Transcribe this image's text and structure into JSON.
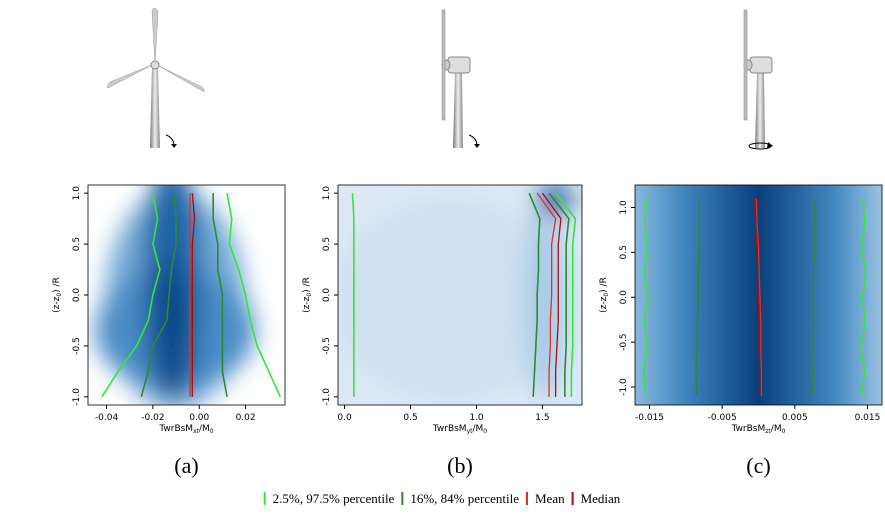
{
  "legend": [
    {
      "name": "2.5%, 97.5% percentile",
      "color": "#33e833"
    },
    {
      "name": "16%, 84% percentile",
      "color": "#2f8a2f"
    },
    {
      "name": "Mean",
      "color": "#e03020"
    },
    {
      "name": "Median",
      "color": "#a01010"
    }
  ],
  "chart_data": [
    {
      "type": "line",
      "caption": "(a)",
      "xlabel": [
        "TwrBsM",
        "xt",
        "/M",
        "0"
      ],
      "ylabel": [
        "(z-z",
        "0",
        ") /R"
      ],
      "xlim": [
        -0.048,
        0.037
      ],
      "xticks": [
        -0.04,
        -0.02,
        {
          "value": 0,
          "label": "0.00"
        },
        0.02
      ],
      "ylim": [
        -1.08,
        1.08
      ],
      "yticks": [
        {
          "value": -1,
          "label": "-1.0"
        },
        -0.5,
        {
          "value": 0,
          "label": "0.0"
        },
        0.5,
        {
          "value": 1,
          "label": "1.0"
        }
      ],
      "y": [
        -1,
        -0.75,
        -0.5,
        -0.25,
        0,
        0.25,
        0.5,
        0.75,
        1
      ],
      "series": [
        {
          "lines": [
            [
              -0.042,
              -0.035,
              -0.027,
              -0.022,
              -0.02,
              -0.017,
              -0.02,
              -0.018,
              -0.02
            ],
            [
              0.035,
              0.03,
              0.025,
              0.022,
              0.02,
              0.017,
              0.013,
              0.014,
              0.012
            ]
          ]
        },
        {
          "lines": [
            [
              -0.025,
              -0.022,
              -0.02,
              -0.014,
              -0.013,
              -0.012,
              -0.01,
              -0.01,
              -0.011
            ],
            [
              0.012,
              0.01,
              0.01,
              0.01,
              0.01,
              0.008,
              0.008,
              0.006,
              0.006
            ]
          ]
        },
        {
          "lines": [
            [
              -0.004,
              -0.004,
              -0.004,
              -0.004,
              -0.004,
              -0.004,
              -0.004,
              -0.004,
              -0.004
            ]
          ]
        },
        {
          "lines": [
            [
              -0.003,
              -0.003,
              -0.003,
              -0.003,
              -0.003,
              -0.003,
              -0.003,
              -0.002,
              -0.003
            ]
          ]
        }
      ]
    },
    {
      "type": "line",
      "caption": "(b)",
      "xlabel": [
        "TwrBsM",
        "yt",
        "/M",
        "0"
      ],
      "ylabel": [
        "(z-z",
        "0",
        ") /R"
      ],
      "xlim": [
        -0.05,
        1.8
      ],
      "xticks": [
        {
          "value": 0,
          "label": "0.0"
        },
        0.5,
        {
          "value": 1,
          "label": "1.0"
        },
        1.5
      ],
      "ylim": [
        -1.08,
        1.08
      ],
      "yticks": [
        {
          "value": -1,
          "label": "-1.0"
        },
        -0.5,
        {
          "value": 0,
          "label": "0.0"
        },
        0.5,
        {
          "value": 1,
          "label": "1.0"
        }
      ],
      "y": [
        -1,
        -0.75,
        -0.5,
        -0.25,
        0,
        0.25,
        0.5,
        0.75,
        1
      ],
      "series": [
        {
          "lines": [
            [
              0.07,
              0.07,
              0.07,
              0.07,
              0.07,
              0.07,
              0.07,
              0.07,
              0.06
            ],
            [
              1.72,
              1.72,
              1.73,
              1.73,
              1.73,
              1.73,
              1.73,
              1.75,
              1.6
            ]
          ]
        },
        {
          "lines": [
            [
              1.43,
              1.44,
              1.45,
              1.46,
              1.46,
              1.47,
              1.47,
              1.48,
              1.4
            ],
            [
              1.67,
              1.67,
              1.68,
              1.68,
              1.68,
              1.68,
              1.68,
              1.7,
              1.55
            ]
          ]
        },
        {
          "lines": [
            [
              1.55,
              1.55,
              1.56,
              1.56,
              1.57,
              1.57,
              1.57,
              1.6,
              1.46
            ]
          ]
        },
        {
          "lines": [
            [
              1.6,
              1.6,
              1.61,
              1.62,
              1.62,
              1.62,
              1.62,
              1.64,
              1.5
            ]
          ]
        }
      ]
    },
    {
      "type": "line",
      "caption": "(c)",
      "xlabel": [
        "TwrBsM",
        "zt",
        "/M",
        "0"
      ],
      "ylabel": [
        "(z-z",
        "0",
        ") /R"
      ],
      "xlim": [
        -0.017,
        0.017
      ],
      "xticks": [
        -0.015,
        -0.005,
        0.005,
        0.015
      ],
      "ylim": [
        -1.2,
        1.25
      ],
      "yticks": [
        {
          "value": -1,
          "label": "-1.0"
        },
        -0.5,
        {
          "value": 0,
          "label": "0.0"
        },
        0.5,
        {
          "value": 1,
          "label": "1.0"
        }
      ],
      "y": [
        -1.1,
        -0.825,
        -0.55,
        -0.275,
        0,
        0.275,
        0.55,
        0.825,
        1.1
      ],
      "series": [
        {
          "lines": [
            [
              -0.0155,
              -0.0158,
              -0.0153,
              -0.0157,
              -0.0152,
              -0.0157,
              -0.0153,
              -0.0156,
              -0.0154
            ],
            [
              0.0142,
              0.0146,
              0.0141,
              0.0147,
              0.0143,
              0.0148,
              0.0142,
              0.0146,
              0.0144
            ]
          ]
        },
        {
          "lines": [
            [
              -0.0085,
              -0.0086,
              -0.0085,
              -0.0084,
              -0.0083,
              -0.0083,
              -0.0082,
              -0.0082,
              -0.0081
            ],
            [
              0.0074,
              0.0075,
              0.0075,
              0.0076,
              0.0075,
              0.0076,
              0.0077,
              0.0077,
              0.0078
            ]
          ]
        },
        {
          "lines": [
            [
              0.0004,
              0.0004,
              0.0003,
              0.0003,
              0.0002,
              0.0001,
              0,
              -0.0002,
              -0.0003
            ]
          ]
        },
        {
          "lines": [
            [
              0.0002,
              0.0002,
              0.0001,
              0.0001,
              0,
              -0.0001,
              -0.0002,
              -0.0004,
              -0.0005
            ]
          ]
        }
      ]
    }
  ]
}
